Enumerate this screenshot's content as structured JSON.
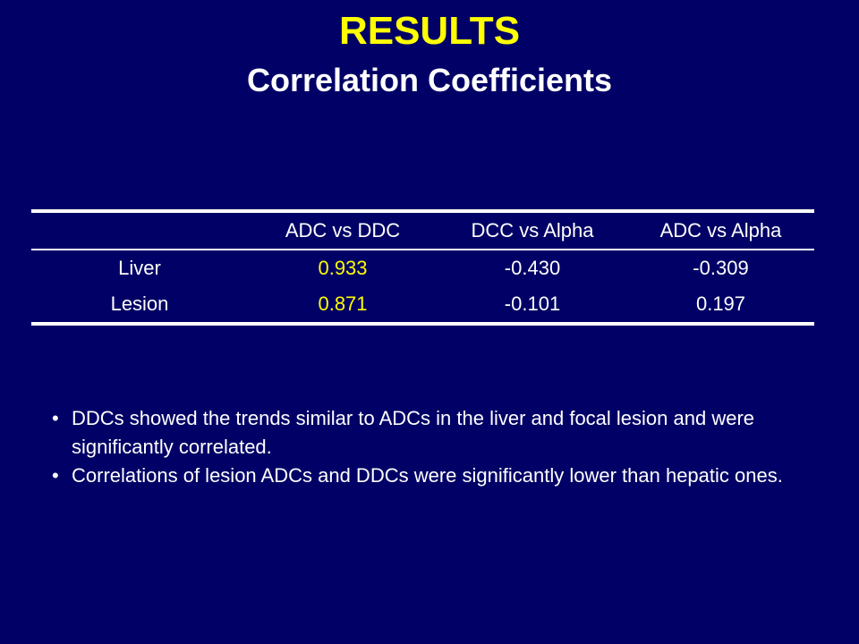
{
  "header": {
    "title": "RESULTS",
    "subtitle": "Correlation Coefficients"
  },
  "table": {
    "columns": [
      "",
      "ADC vs DDC",
      "DCC vs Alpha",
      "ADC vs Alpha"
    ],
    "rows": [
      [
        "Liver",
        "0.933",
        "-0.430",
        "-0.309"
      ],
      [
        "Lesion",
        "0.871",
        "-0.101",
        "0.197"
      ]
    ]
  },
  "bullets": [
    "DDCs showed the trends similar to ADCs in the liver and focal lesion and were significantly correlated.",
    "Correlations of lesion ADCs and DDCs were significantly lower than hepatic ones."
  ]
}
